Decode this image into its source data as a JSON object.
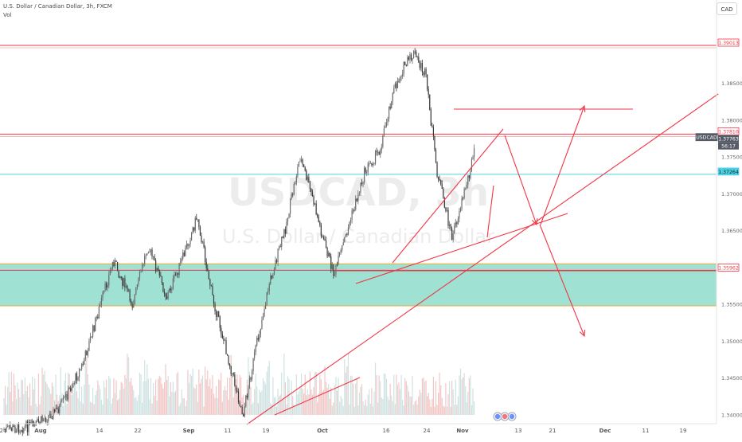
{
  "header": {
    "symbol_line": "U.S. Dollar / Canadian Dollar, 3h, FXCM",
    "volume_label": "Vol",
    "currency_button": "CAD"
  },
  "watermark": {
    "symbol": "USDCAD, 3h",
    "name": "U.S. Dollar / Canadian Dollar"
  },
  "colors": {
    "up_candle": "#6b6b6b",
    "down_candle": "#3a3a3a",
    "volume_up": "#f2c7c7",
    "volume_down": "#cfe3e3",
    "drawing": "#f23645",
    "zone_fill": "#5fcdb6",
    "zone_border": "#f6a735",
    "cyan_level": "#4dd0e1"
  },
  "chart_data": {
    "type": "candlestick",
    "instrument": "USDCAD",
    "timeframe": "3h",
    "y_tick_labels": [
      "1.38500",
      "1.38000",
      "1.37500",
      "1.37000",
      "1.36500",
      "1.35500",
      "1.35000",
      "1.34500",
      "1.34000"
    ],
    "x_tick_labels": [
      "24",
      "Aug",
      "14",
      "22",
      "Sep",
      "11",
      "19",
      "Oct",
      "16",
      "24",
      "Nov",
      "13",
      "21",
      "Dec",
      "11",
      "19"
    ],
    "ylim": [
      1.3385,
      1.3945
    ],
    "price_path": [
      {
        "date": "2018-07-24",
        "price": 1.338
      },
      {
        "date": "2018-08-01",
        "price": 1.3385
      },
      {
        "date": "2018-08-08",
        "price": 1.341
      },
      {
        "date": "2018-08-14",
        "price": 1.347
      },
      {
        "date": "2018-08-18",
        "price": 1.354
      },
      {
        "date": "2018-08-22",
        "price": 1.361
      },
      {
        "date": "2018-08-27",
        "price": 1.355
      },
      {
        "date": "2018-08-31",
        "price": 1.363
      },
      {
        "date": "2018-09-05",
        "price": 1.356
      },
      {
        "date": "2018-09-09",
        "price": 1.361
      },
      {
        "date": "2018-09-13",
        "price": 1.367
      },
      {
        "date": "2018-09-17",
        "price": 1.356
      },
      {
        "date": "2018-09-21",
        "price": 1.348
      },
      {
        "date": "2018-09-25",
        "price": 1.34
      },
      {
        "date": "2018-09-28",
        "price": 1.348
      },
      {
        "date": "2018-10-02",
        "price": 1.358
      },
      {
        "date": "2018-10-06",
        "price": 1.365
      },
      {
        "date": "2018-10-10",
        "price": 1.375
      },
      {
        "date": "2018-10-13",
        "price": 1.37
      },
      {
        "date": "2018-10-16",
        "price": 1.364
      },
      {
        "date": "2018-10-19",
        "price": 1.359
      },
      {
        "date": "2018-10-23",
        "price": 1.366
      },
      {
        "date": "2018-10-27",
        "price": 1.373
      },
      {
        "date": "2018-10-31",
        "price": 1.376
      },
      {
        "date": "2018-11-03",
        "price": 1.383
      },
      {
        "date": "2018-11-06",
        "price": 1.387
      },
      {
        "date": "2018-11-09",
        "price": 1.389
      },
      {
        "date": "2018-11-12",
        "price": 1.386
      },
      {
        "date": "2018-11-15",
        "price": 1.373
      },
      {
        "date": "2018-11-19",
        "price": 1.364
      },
      {
        "date": "2018-11-22",
        "price": 1.37
      },
      {
        "date": "2018-11-25",
        "price": 1.376
      }
    ],
    "price_labels": [
      {
        "text": "1.39013",
        "price": 1.39013,
        "style": "red"
      },
      {
        "text": "1.37810",
        "price": 1.3781,
        "style": "red"
      },
      {
        "text": "USDCAD",
        "price": 1.37763,
        "style": "dark"
      },
      {
        "text": "1.37763",
        "price": 1.37763,
        "style": "dark"
      },
      {
        "text": "56:17",
        "price": 1.37763,
        "style": "dark"
      },
      {
        "text": "1.37264",
        "price": 1.37264,
        "style": "cyan"
      },
      {
        "text": "1.35962",
        "price": 1.35962,
        "style": "red"
      }
    ],
    "horizontal_levels": [
      {
        "price": 1.39013,
        "color": "#f23645"
      },
      {
        "price": 1.3781,
        "color": "#f23645"
      },
      {
        "price": 1.37264,
        "color": "#4dd0e1"
      },
      {
        "price": 1.35962,
        "color": "#f23645"
      }
    ],
    "zone": {
      "from": 1.3548,
      "to": 1.3605
    },
    "last_price": 1.37763,
    "grid": false,
    "volume_panel": true
  }
}
